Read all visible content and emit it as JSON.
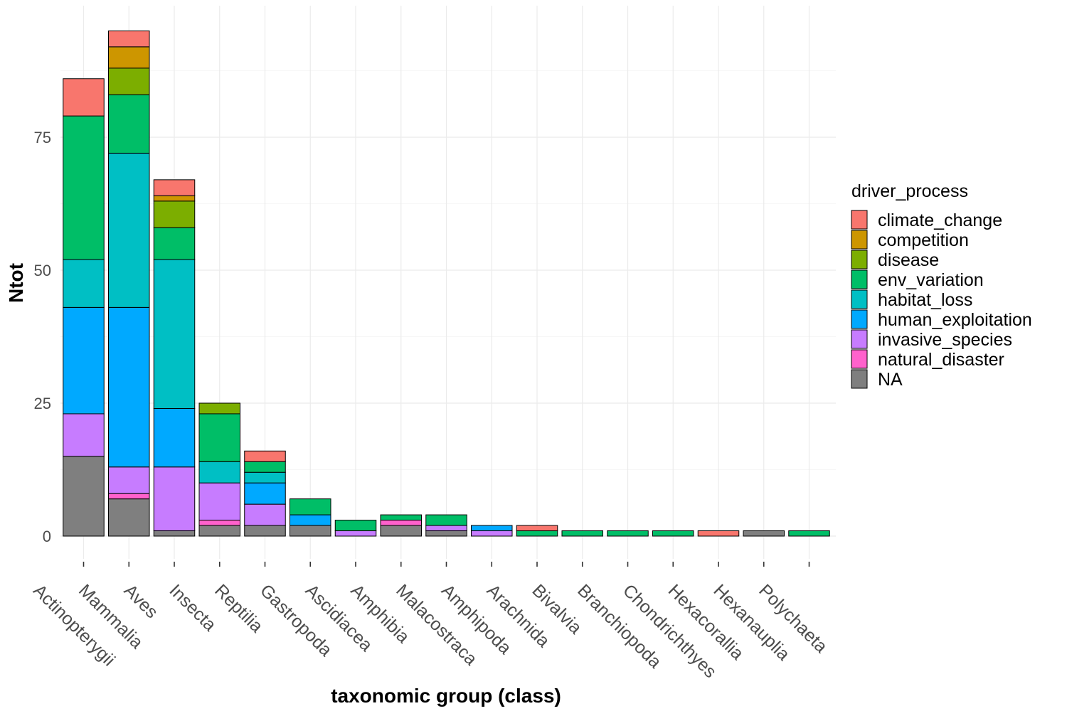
{
  "chart_data": {
    "type": "bar",
    "stacked": true,
    "xlabel": "taxonomic group (class)",
    "ylabel": "Ntot",
    "ylim": [
      -4,
      100
    ],
    "yticks": [
      0,
      25,
      50,
      75
    ],
    "grid": true,
    "legend_position": "right",
    "legend_title": "driver_process",
    "categories": [
      "Actinopterygii",
      "Mammalia",
      "Aves",
      "Insecta",
      "Reptilia",
      "Gastropoda",
      "Ascidiacea",
      "Amphibia",
      "Malacostraca",
      "Amphipoda",
      "Arachnida",
      "Bivalvia",
      "Branchiopoda",
      "Chondrichthyes",
      "Hexacorallia",
      "Hexanauplia",
      "Polychaeta"
    ],
    "series": [
      {
        "name": "NA",
        "color": "#7F7F7F",
        "values": [
          15,
          7,
          1,
          2,
          2,
          2,
          0,
          2,
          1,
          0,
          0,
          0,
          0,
          0,
          0,
          1,
          0
        ]
      },
      {
        "name": "natural_disaster",
        "color": "#FF61CC",
        "values": [
          0,
          1,
          0,
          1,
          0,
          0,
          0,
          1,
          0,
          0,
          0,
          0,
          0,
          0,
          0,
          0,
          0
        ]
      },
      {
        "name": "invasive_species",
        "color": "#C77CFF",
        "values": [
          8,
          5,
          12,
          7,
          4,
          0,
          1,
          0,
          1,
          1,
          0,
          0,
          0,
          0,
          0,
          0,
          0
        ]
      },
      {
        "name": "human_exploitation",
        "color": "#00A9FF",
        "values": [
          20,
          30,
          11,
          0,
          4,
          2,
          0,
          0,
          0,
          1,
          0,
          0,
          0,
          0,
          0,
          0,
          0
        ]
      },
      {
        "name": "habitat_loss",
        "color": "#00BFC4",
        "values": [
          9,
          29,
          28,
          4,
          2,
          0,
          0,
          0,
          0,
          0,
          0,
          0,
          0,
          0,
          0,
          0,
          0
        ]
      },
      {
        "name": "env_variation",
        "color": "#00BE67",
        "values": [
          27,
          11,
          6,
          9,
          2,
          3,
          2,
          1,
          2,
          0,
          1,
          1,
          1,
          1,
          0,
          0,
          1
        ]
      },
      {
        "name": "disease",
        "color": "#7CAE00",
        "values": [
          0,
          5,
          5,
          2,
          0,
          0,
          0,
          0,
          0,
          0,
          0,
          0,
          0,
          0,
          0,
          0,
          0
        ]
      },
      {
        "name": "competition",
        "color": "#CD9600",
        "values": [
          0,
          4,
          1,
          0,
          0,
          0,
          0,
          0,
          0,
          0,
          0,
          0,
          0,
          0,
          0,
          0,
          0
        ]
      },
      {
        "name": "climate_change",
        "color": "#F8766D",
        "values": [
          7,
          3,
          3,
          0,
          2,
          0,
          0,
          0,
          0,
          0,
          1,
          0,
          0,
          0,
          1,
          0,
          0
        ]
      }
    ],
    "legend_order": [
      "climate_change",
      "competition",
      "disease",
      "env_variation",
      "habitat_loss",
      "human_exploitation",
      "invasive_species",
      "natural_disaster",
      "NA"
    ]
  }
}
